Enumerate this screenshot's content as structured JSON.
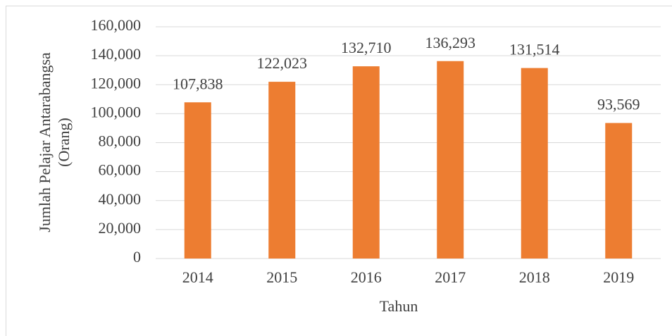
{
  "chart_data": {
    "type": "bar",
    "xlabel": "Tahun",
    "ylabel": [
      "Jumlah Pelajar Antarabangsa",
      "(Orang)"
    ],
    "categories": [
      "2014",
      "2015",
      "2016",
      "2017",
      "2018",
      "2019"
    ],
    "values": [
      107838,
      122023,
      132710,
      136293,
      131514,
      93569
    ],
    "value_labels": [
      "107,838",
      "122,023",
      "132,710",
      "136,293",
      "131,514",
      "93,569"
    ],
    "color": "#ed7d31",
    "ylim": [
      0,
      160000
    ],
    "yticks": [
      0,
      {
        "value": 20000,
        "label": "20,000"
      },
      {
        "value": 40000,
        "label": "40,000"
      },
      {
        "value": 60000,
        "label": "60,000"
      },
      {
        "value": 80000,
        "label": "80,000"
      },
      {
        "value": 100000,
        "label": "100,000"
      },
      {
        "value": 120000,
        "label": "120,000"
      },
      {
        "value": 140000,
        "label": "140,000"
      },
      {
        "value": 160000,
        "label": "160,000"
      }
    ],
    "grid": true
  }
}
